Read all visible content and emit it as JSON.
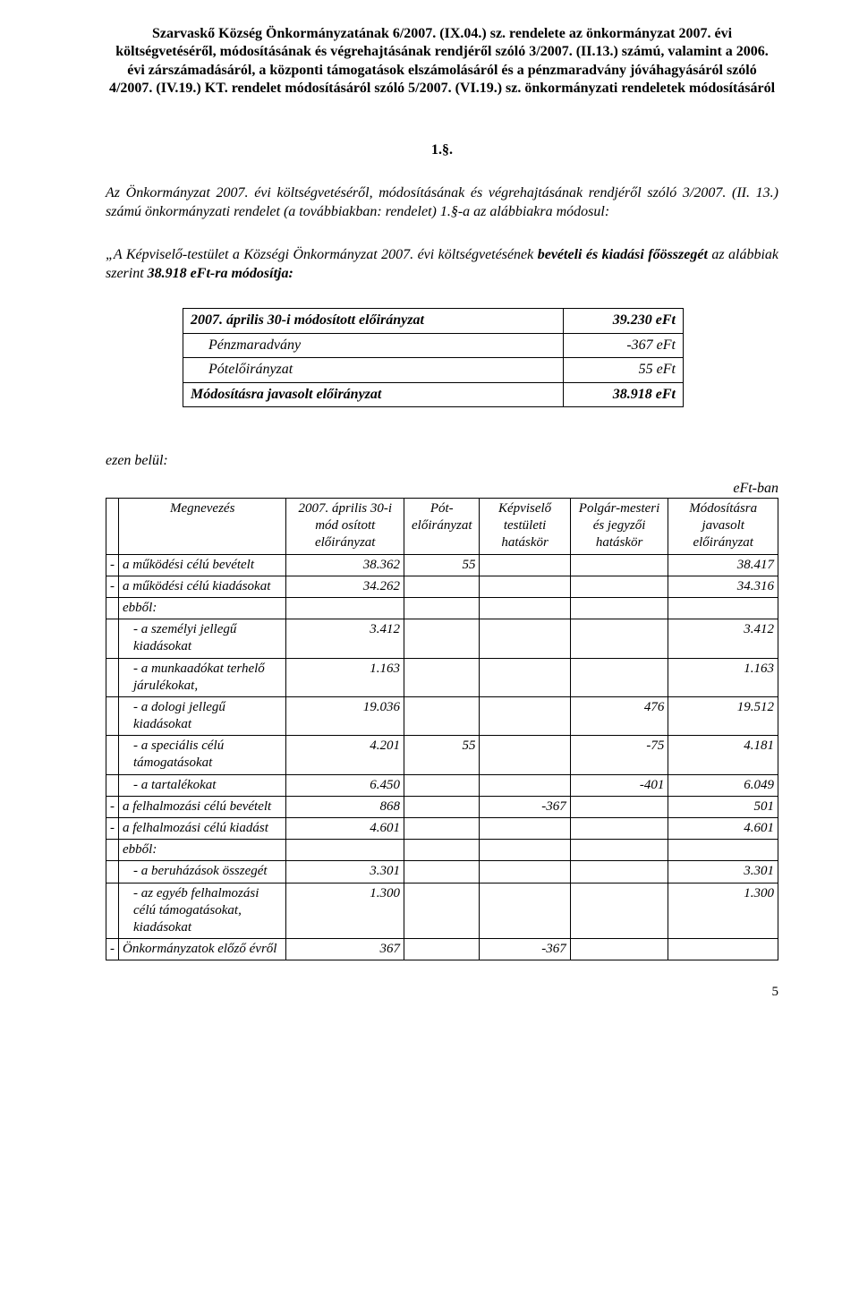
{
  "title": "Szarvaskő Község Önkormányzatának 6/2007. (IX.04.) sz. rendelete az önkormányzat 2007. évi költségvetéséről, módosításának és végrehajtásának rendjéről szóló 3/2007. (II.13.) számú, valamint a 2006. évi zárszámadásáról, a központi támogatások elszámolásáról és a pénzmaradvány jóváhagyásáról szóló 4/2007. (IV.19.) KT. rendelet módosításáról szóló 5/2007. (VI.19.) sz. önkormányzati rendeletek módosításáról",
  "section_num": "1.§.",
  "para1_a": "Az Önkormányzat 2007. évi költségvetéséről, módosításának és végrehajtásának rendjéről szóló 3/2007. (II. 13.) számú önkormányzati rendelet (a továbbiakban: rendelet) 1.§-a az alábbiakra módosul:",
  "para2_a": "„A Képviselő-testület a Községi Önkormányzat 2007. évi költségvetésének ",
  "para2_b": "bevételi és kiadási főösszegét",
  "para2_c": " az alábbiak szerint ",
  "para2_d": "38.918 eFt-ra módosítja:",
  "table1": {
    "rows": [
      {
        "bold": true,
        "indent": false,
        "label": "2007. április 30-i módosított előirányzat",
        "value": "39.230 eFt"
      },
      {
        "bold": false,
        "indent": true,
        "label": "Pénzmaradvány",
        "value": "-367 eFt"
      },
      {
        "bold": false,
        "indent": true,
        "label": "Pótelőirányzat",
        "value": "55 eFt"
      },
      {
        "bold": true,
        "indent": false,
        "label": "Módosításra javasolt előirányzat",
        "value": "38.918 eFt"
      }
    ]
  },
  "ezen": "ezen belül:",
  "unit": "eFt-ban",
  "table2": {
    "headers": {
      "c0": "",
      "c1": "Megnevezés",
      "c2": "2007. április 30-i mód osított előirányzat",
      "c3": "Pót-előirányzat",
      "c4": "Képviselő testületi hatáskör",
      "c5": "Polgár-mesteri és jegyzői hatáskör",
      "c6": "Módosításra javasolt előirányzat"
    },
    "rows": [
      {
        "lead": "-",
        "pad": 0,
        "label": "a működési célú bevételt",
        "c2": "38.362",
        "c3": "55",
        "c4": "",
        "c5": "",
        "c6": "38.417"
      },
      {
        "lead": "-",
        "pad": 0,
        "label": "a működési célú kiadásokat",
        "c2": "34.262",
        "c3": "",
        "c4": "",
        "c5": "",
        "c6": "34.316"
      },
      {
        "lead": "",
        "pad": 0,
        "label": "ebből:",
        "c2": "",
        "c3": "",
        "c4": "",
        "c5": "",
        "c6": ""
      },
      {
        "lead": "",
        "pad": 1,
        "label": "- a személyi jellegű kiadásokat",
        "c2": "3.412",
        "c3": "",
        "c4": "",
        "c5": "",
        "c6": "3.412"
      },
      {
        "lead": "",
        "pad": 1,
        "label": "- a munkaadókat terhelő járulékokat,",
        "c2": "1.163",
        "c3": "",
        "c4": "",
        "c5": "",
        "c6": "1.163"
      },
      {
        "lead": "",
        "pad": 1,
        "label": "- a dologi jellegű kiadásokat",
        "c2": "19.036",
        "c3": "",
        "c4": "",
        "c5": "476",
        "c6": "19.512"
      },
      {
        "lead": "",
        "pad": 1,
        "label": "- a speciális célú támogatásokat",
        "c2": "4.201",
        "c3": "55",
        "c4": "",
        "c5": "-75",
        "c6": "4.181"
      },
      {
        "lead": "",
        "pad": 1,
        "label": "- a tartalékokat",
        "c2": "6.450",
        "c3": "",
        "c4": "",
        "c5": "-401",
        "c6": "6.049"
      },
      {
        "lead": "-",
        "pad": 0,
        "label": "a felhalmozási célú bevételt",
        "c2": "868",
        "c3": "",
        "c4": "-367",
        "c5": "",
        "c6": "501"
      },
      {
        "lead": "-",
        "pad": 0,
        "label": "a felhalmozási célú kiadást",
        "c2": "4.601",
        "c3": "",
        "c4": "",
        "c5": "",
        "c6": "4.601"
      },
      {
        "lead": "",
        "pad": 0,
        "label": "ebből:",
        "c2": "",
        "c3": "",
        "c4": "",
        "c5": "",
        "c6": ""
      },
      {
        "lead": "",
        "pad": 1,
        "label": "- a beruházások összegét",
        "c2": "3.301",
        "c3": "",
        "c4": "",
        "c5": "",
        "c6": "3.301"
      },
      {
        "lead": "",
        "pad": 1,
        "label": "- az egyéb felhalmozási célú támogatásokat, kiadásokat",
        "c2": "1.300",
        "c3": "",
        "c4": "",
        "c5": "",
        "c6": "1.300"
      },
      {
        "lead": "-",
        "pad": 0,
        "label": "Önkormányzatok előző évről",
        "c2": "367",
        "c3": "",
        "c4": "-367",
        "c5": "",
        "c6": ""
      }
    ]
  },
  "page_number": "5"
}
